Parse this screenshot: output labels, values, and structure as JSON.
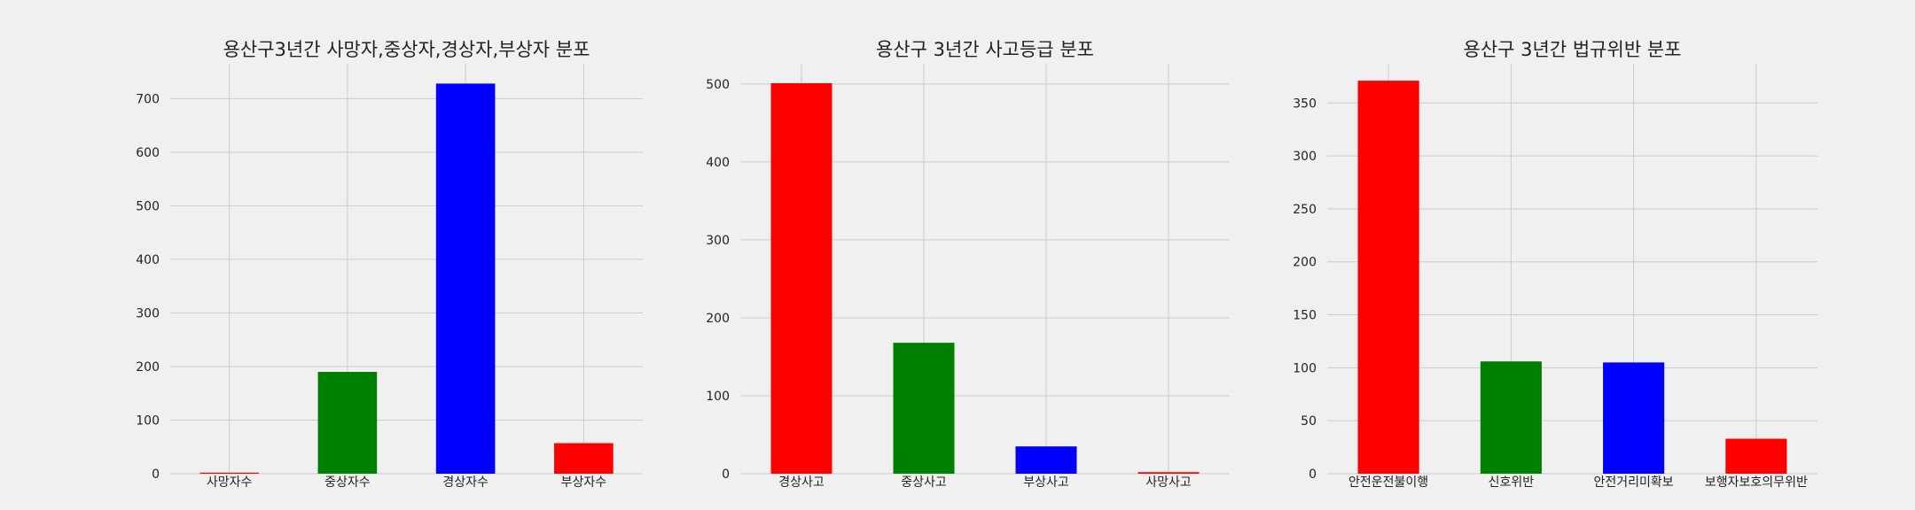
{
  "chart_data": [
    {
      "type": "bar",
      "title": "용산구3년간 사망자,중상자,경상자,부상자 분포",
      "xlabel": "",
      "ylabel": "",
      "categories": [
        "사망자수",
        "중상자수",
        "경상자수",
        "부상자수"
      ],
      "values": [
        2,
        190,
        728,
        57
      ],
      "colors": [
        "#ff0000",
        "#008000",
        "#0000ff",
        "#ff0000"
      ],
      "ylim": [
        0,
        765
      ],
      "yticks": [
        0,
        100,
        200,
        300,
        400,
        500,
        600,
        700
      ],
      "grid": true
    },
    {
      "type": "bar",
      "title": "용산구 3년간 사고등급 분포",
      "xlabel": "",
      "ylabel": "",
      "categories": [
        "경상사고",
        "중상사고",
        "부상사고",
        "사망사고"
      ],
      "values": [
        501,
        168,
        35,
        2
      ],
      "colors": [
        "#ff0000",
        "#008000",
        "#0000ff",
        "#ff0000"
      ],
      "ylim": [
        0,
        526
      ],
      "yticks": [
        0,
        100,
        200,
        300,
        400,
        500
      ],
      "grid": true
    },
    {
      "type": "bar",
      "title": "용산구 3년간 법규위반 분포",
      "xlabel": "",
      "ylabel": "",
      "categories": [
        "안전운전불이행",
        "신호위반",
        "안전거리미확보",
        "보행자보호의무위반"
      ],
      "values": [
        371,
        106,
        105,
        33
      ],
      "colors": [
        "#ff0000",
        "#008000",
        "#0000ff",
        "#ff0000"
      ],
      "ylim": [
        0,
        387
      ],
      "yticks": [
        0,
        50,
        100,
        150,
        200,
        250,
        300,
        350
      ],
      "grid": true
    }
  ]
}
